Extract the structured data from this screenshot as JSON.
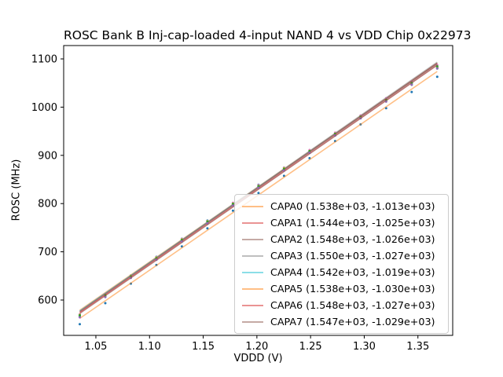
{
  "chart_data": {
    "type": "scatter",
    "title": "ROSC Bank B Inj-cap-loaded 4-input NAND 4 vs VDD Chip 0x22973",
    "xlabel": "VDDD (V)",
    "ylabel": "ROSC (MHz)",
    "xlim": [
      1.02,
      1.3824
    ],
    "ylim": [
      526.7,
      1127.7
    ],
    "xticks": [
      1.05,
      1.1,
      1.15,
      1.2,
      1.25,
      1.3,
      1.35
    ],
    "yticks": [
      600,
      700,
      800,
      900,
      1000,
      1100
    ],
    "grid": false,
    "legend_position": "lower-right-inset",
    "x": [
      1.035,
      1.0588,
      1.0826,
      1.1064,
      1.1301,
      1.1539,
      1.1777,
      1.2015,
      1.2253,
      1.2491,
      1.2729,
      1.2966,
      1.3204,
      1.3442,
      1.368
    ],
    "fit_x_range": [
      1.035,
      1.368
    ],
    "series": [
      {
        "label": "CAPA0 (1.538e+03, -1.013e+03)",
        "slope": 1538,
        "intercept": -1013,
        "line_color": "#ff7f0e",
        "marker_color": "#1f77b4",
        "residuals": [
          -9,
          -4,
          -1,
          1,
          2,
          3,
          3,
          4,
          3,
          2,
          2,
          0,
          -2,
          -5,
          -9
        ]
      },
      {
        "label": "CAPA1 (1.544e+03, -1.025e+03)",
        "slope": 1544,
        "intercept": -1025,
        "line_color": "#d62728",
        "marker_color": "#2ca02c",
        "residuals": [
          -7,
          -3,
          0,
          1,
          2,
          2,
          3,
          3,
          3,
          2,
          1,
          0,
          -2,
          -4,
          -7
        ]
      },
      {
        "label": "CAPA2 (1.548e+03, -1.026e+03)",
        "slope": 1548,
        "intercept": -1026,
        "line_color": "#8c564b",
        "marker_color": "#9467bd",
        "residuals": [
          -8,
          -3,
          -1,
          1,
          2,
          3,
          3,
          3,
          2,
          2,
          1,
          0,
          -2,
          -4,
          -8
        ]
      },
      {
        "label": "CAPA3 (1.550e+03, -1.027e+03)",
        "slope": 1550,
        "intercept": -1027,
        "line_color": "#7f7f7f",
        "marker_color": "#e377c2",
        "residuals": [
          -7,
          -2,
          0,
          1,
          2,
          2,
          3,
          3,
          2,
          2,
          1,
          0,
          -1,
          -3,
          -6
        ]
      },
      {
        "label": "CAPA4 (1.542e+03, -1.019e+03)",
        "slope": 1542,
        "intercept": -1019,
        "line_color": "#17becf",
        "marker_color": "#bcbd22",
        "residuals": [
          -8,
          -3,
          0,
          1,
          2,
          3,
          3,
          3,
          3,
          2,
          1,
          0,
          -2,
          -4,
          -7
        ]
      },
      {
        "label": "CAPA5 (1.538e+03, -1.030e+03)",
        "slope": 1538,
        "intercept": -1030,
        "line_color": "#ff7f0e",
        "marker_color": "#1f77b4",
        "residuals": [
          -12,
          -5,
          -1,
          1,
          3,
          4,
          4,
          4,
          3,
          3,
          2,
          0,
          -3,
          -6,
          -11
        ]
      },
      {
        "label": "CAPA6 (1.548e+03, -1.027e+03)",
        "slope": 1548,
        "intercept": -1027,
        "line_color": "#d62728",
        "marker_color": "#2ca02c",
        "residuals": [
          -7,
          -2,
          0,
          1,
          2,
          3,
          3,
          3,
          2,
          2,
          1,
          0,
          -2,
          -3,
          -6
        ]
      },
      {
        "label": "CAPA7 (1.547e+03, -1.029e+03)",
        "slope": 1547,
        "intercept": -1029,
        "line_color": "#8c564b",
        "marker_color": "#9467bd",
        "residuals": [
          -8,
          -3,
          0,
          1,
          2,
          3,
          3,
          3,
          2,
          2,
          1,
          0,
          -2,
          -4,
          -7
        ]
      }
    ]
  }
}
